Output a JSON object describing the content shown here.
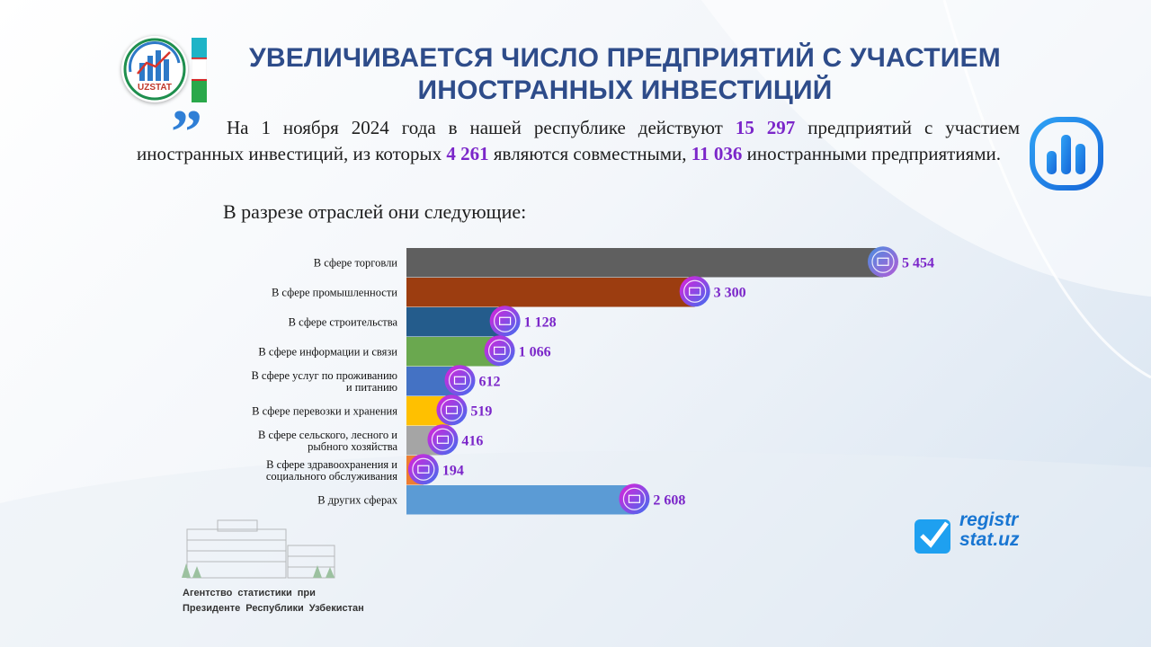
{
  "header": {
    "title_line1": "УВЕЛИЧИВАЕТСЯ ЧИСЛО ПРЕДПРИЯТИЙ С УЧАСТИЕМ",
    "title_line2": "ИНОСТРАННЫХ ИНВЕСТИЦИЙ",
    "logo_text": "UZSTAT"
  },
  "intro": {
    "part1": "На 1 ноября 2024 года в нашей республике действуют ",
    "total": "15 297",
    "part2": " предприятий с участием иностранных инвестиций, из которых ",
    "joint": "4 261",
    "part3": " являются совместными, ",
    "foreign": "11 036",
    "part4": " иностранными предприятиями."
  },
  "subheading": "В разрезе отраслей они следующие:",
  "chart_data": {
    "type": "bar",
    "orientation": "horizontal",
    "categories": [
      "В сфере торговли",
      "В сфере промышленности",
      "В сфере строительства",
      "В сфере информации  и связи",
      "В сфере услуг  по проживанию и питанию",
      "В сфере перевозки и хранения",
      "В сфере сельского, лесного и рыбного хозяйства",
      "В сфере здравоохранения и социального обслуживания",
      "В других сферах"
    ],
    "category_lines": [
      [
        "В сфере торговли"
      ],
      [
        "В сфере промышленности"
      ],
      [
        "В сфере строительства"
      ],
      [
        "В сфере информации  и связи"
      ],
      [
        "В сфере услуг  по проживанию",
        "и питанию"
      ],
      [
        "В сфере перевозки и хранения"
      ],
      [
        "В сфере сельского, лесного и",
        "рыбного хозяйства"
      ],
      [
        "В сфере здравоохранения и",
        "социального обслуживания"
      ],
      [
        "В других сферах"
      ]
    ],
    "values": [
      5454,
      3300,
      1128,
      1066,
      612,
      519,
      416,
      194,
      2608
    ],
    "value_labels": [
      "5 454",
      "3 300",
      "1 128",
      "1 066",
      "612",
      "519",
      "416",
      "194",
      "2 608"
    ],
    "colors": [
      "#5f5f5f",
      "#9c3d10",
      "#245c8c",
      "#6aa84f",
      "#4472c4",
      "#ffc000",
      "#a5a5a5",
      "#ed7d31",
      "#5b9bd5"
    ],
    "icons": [
      "shop-icon",
      "factory-icon",
      "building-icon",
      "network-icon",
      "hotel-icon",
      "truck-icon",
      "tractor-icon",
      "medical-icon",
      "dots-icon"
    ],
    "xlim": [
      0,
      5454
    ],
    "grid": false,
    "legend": "none"
  },
  "footer": {
    "agency_line1": "Агентство  статистики   при",
    "agency_line2": "Президенте  Республики  Узбекистан",
    "registr_line1": "registr",
    "registr_line2": "stat.uz"
  }
}
